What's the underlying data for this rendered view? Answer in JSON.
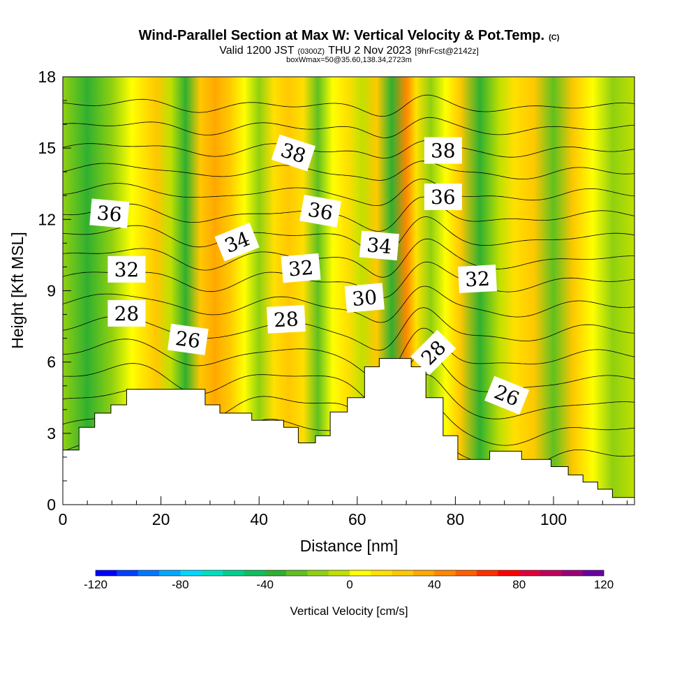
{
  "title": {
    "main": "Wind-Parallel Section at Max W: Vertical Velocity & Pot.Temp.",
    "copyright": "(C)",
    "valid_prefix": "Valid 1200 JST",
    "valid_utc": "(0300Z)",
    "valid_date": "THU 2 Nov 2023",
    "forecast": "[9hrFcst@2142z]",
    "box_info": "boxWmax=50@35.60,138.34,2723m"
  },
  "chart_data": {
    "type": "heatmap",
    "xlabel": "Distance [nm]",
    "ylabel": "Height [Kft MSL]",
    "xlim": [
      0,
      116.5
    ],
    "ylim": [
      0,
      18
    ],
    "x_ticks": [
      0,
      20,
      40,
      60,
      80,
      100
    ],
    "y_ticks": [
      0,
      3,
      6,
      9,
      12,
      15,
      18
    ],
    "colorbar": {
      "label": "Vertical Velocity [cm/s]",
      "min": -120,
      "max": 120,
      "tick_labels": [
        "-120",
        "-80",
        "-40",
        "0",
        "40",
        "80",
        "120"
      ],
      "colors": [
        "#0000ff",
        "#0040ff",
        "#0078ff",
        "#00a8ff",
        "#00d8ff",
        "#00e0c0",
        "#00d090",
        "#10c060",
        "#30b030",
        "#60c020",
        "#90d010",
        "#c0e000",
        "#ffff00",
        "#ffe000",
        "#ffc800",
        "#ffa800",
        "#ff8800",
        "#ff6000",
        "#ff3000",
        "#ff0000",
        "#e0003a",
        "#c0005a",
        "#9a0078",
        "#6a00a0"
      ]
    },
    "terrain": [
      [
        0,
        2.3
      ],
      [
        3.3,
        2.3
      ],
      [
        3.3,
        3.25
      ],
      [
        6.5,
        3.25
      ],
      [
        6.5,
        3.85
      ],
      [
        9.8,
        3.85
      ],
      [
        9.8,
        4.2
      ],
      [
        13,
        4.2
      ],
      [
        13,
        4.85
      ],
      [
        29,
        4.85
      ],
      [
        29,
        4.2
      ],
      [
        32,
        4.2
      ],
      [
        32,
        3.85
      ],
      [
        38.5,
        3.85
      ],
      [
        38.5,
        3.55
      ],
      [
        45,
        3.55
      ],
      [
        45,
        3.25
      ],
      [
        48,
        3.25
      ],
      [
        48,
        2.6
      ],
      [
        51.5,
        2.6
      ],
      [
        51.5,
        2.9
      ],
      [
        54.5,
        2.9
      ],
      [
        54.5,
        3.9
      ],
      [
        58,
        3.9
      ],
      [
        58,
        4.5
      ],
      [
        61.5,
        4.5
      ],
      [
        61.5,
        5.8
      ],
      [
        64.5,
        5.8
      ],
      [
        64.5,
        6.15
      ],
      [
        71,
        6.15
      ],
      [
        71,
        5.8
      ],
      [
        74,
        5.8
      ],
      [
        74,
        4.5
      ],
      [
        77.5,
        4.5
      ],
      [
        77.5,
        2.9
      ],
      [
        80.5,
        2.9
      ],
      [
        80.5,
        1.9
      ],
      [
        87,
        1.9
      ],
      [
        87,
        2.25
      ],
      [
        93.5,
        2.25
      ],
      [
        93.5,
        1.9
      ],
      [
        99.5,
        1.9
      ],
      [
        99.5,
        1.6
      ],
      [
        103,
        1.6
      ],
      [
        103,
        1.25
      ],
      [
        106,
        1.25
      ],
      [
        106,
        0.95
      ],
      [
        109,
        0.95
      ],
      [
        109,
        0.65
      ],
      [
        112,
        0.65
      ],
      [
        112,
        0.3
      ],
      [
        116.5,
        0.3
      ]
    ],
    "w_columns": [
      {
        "x": 0,
        "w": -15
      },
      {
        "x": 5,
        "w": -40
      },
      {
        "x": 10,
        "w": -12
      },
      {
        "x": 14,
        "w": 5
      },
      {
        "x": 19,
        "w": 22
      },
      {
        "x": 22,
        "w": -10
      },
      {
        "x": 25,
        "w": -38
      },
      {
        "x": 28,
        "w": 28
      },
      {
        "x": 31,
        "w": 36
      },
      {
        "x": 34,
        "w": 24
      },
      {
        "x": 37,
        "w": 8
      },
      {
        "x": 40,
        "w": -12
      },
      {
        "x": 43,
        "w": 18
      },
      {
        "x": 46,
        "w": 28
      },
      {
        "x": 49,
        "w": 14
      },
      {
        "x": 52,
        "w": -22
      },
      {
        "x": 55,
        "w": 4
      },
      {
        "x": 58,
        "w": 18
      },
      {
        "x": 61,
        "w": -5
      },
      {
        "x": 64,
        "w": 20
      },
      {
        "x": 67,
        "w": -40
      },
      {
        "x": 70,
        "w": 44
      },
      {
        "x": 72,
        "w": 10
      },
      {
        "x": 75,
        "w": -18
      },
      {
        "x": 78,
        "w": 8
      },
      {
        "x": 81,
        "w": 22
      },
      {
        "x": 85,
        "w": -32
      },
      {
        "x": 89,
        "w": -10
      },
      {
        "x": 92,
        "w": 14
      },
      {
        "x": 96,
        "w": 22
      },
      {
        "x": 100,
        "w": -26
      },
      {
        "x": 104,
        "w": 28
      },
      {
        "x": 108,
        "w": 2
      },
      {
        "x": 112,
        "w": -16
      },
      {
        "x": 116.5,
        "w": -8
      }
    ],
    "theta_contours": {
      "values": [
        25,
        26,
        27,
        28,
        29,
        30,
        31,
        32,
        33,
        34,
        35,
        36,
        37,
        38,
        39,
        40
      ],
      "labels": [
        {
          "text": "36",
          "x": 9.5,
          "y": 12.25,
          "angle": 5
        },
        {
          "text": "32",
          "x": 13,
          "y": 9.9,
          "angle": 0
        },
        {
          "text": "28",
          "x": 13,
          "y": 8.05,
          "angle": 0
        },
        {
          "text": "26",
          "x": 25.5,
          "y": 6.95,
          "angle": 8
        },
        {
          "text": "34",
          "x": 35.5,
          "y": 11.05,
          "angle": -22
        },
        {
          "text": "38",
          "x": 47,
          "y": 14.8,
          "angle": 18
        },
        {
          "text": "36",
          "x": 52.5,
          "y": 12.35,
          "angle": 10
        },
        {
          "text": "32",
          "x": 48.5,
          "y": 9.95,
          "angle": -5
        },
        {
          "text": "28",
          "x": 45.5,
          "y": 7.8,
          "angle": -3
        },
        {
          "text": "34",
          "x": 64.5,
          "y": 10.9,
          "angle": 5
        },
        {
          "text": "30",
          "x": 61.5,
          "y": 8.7,
          "angle": -5
        },
        {
          "text": "38",
          "x": 77.5,
          "y": 14.9,
          "angle": 0
        },
        {
          "text": "36",
          "x": 77.5,
          "y": 12.95,
          "angle": 0
        },
        {
          "text": "32",
          "x": 84.5,
          "y": 9.5,
          "angle": -3
        },
        {
          "text": "28",
          "x": 75.5,
          "y": 6.4,
          "angle": -45
        },
        {
          "text": "26",
          "x": 90.5,
          "y": 4.6,
          "angle": 22
        }
      ]
    }
  }
}
